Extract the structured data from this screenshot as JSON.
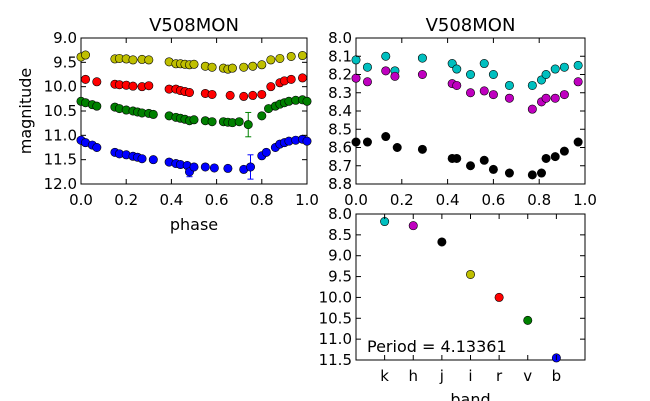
{
  "colors": {
    "k": "#00bfbf",
    "h": "#bf00bf",
    "j": "#000000",
    "i": "#bfbf00",
    "r": "#ff0000",
    "v": "#008000",
    "b": "#0000ff"
  },
  "chart_data": [
    {
      "type": "scatter",
      "title": "V508MON",
      "xlabel": "phase",
      "ylabel": "magnitude",
      "xlim": [
        0.0,
        1.0
      ],
      "ylim": [
        12.0,
        9.0
      ],
      "inverted_y": true,
      "xticks": [
        "0.0",
        "0.2",
        "0.4",
        "0.6",
        "0.8",
        "1.0"
      ],
      "yticks": [
        "9.0",
        "9.5",
        "10.0",
        "10.5",
        "11.0",
        "11.5",
        "12.0"
      ],
      "series": [
        {
          "band": "i",
          "color": "#bfbf00",
          "x": [
            0.0,
            0.02,
            0.15,
            0.17,
            0.2,
            0.23,
            0.27,
            0.3,
            0.39,
            0.42,
            0.44,
            0.46,
            0.48,
            0.5,
            0.55,
            0.58,
            0.63,
            0.65,
            0.67,
            0.72,
            0.76,
            0.8,
            0.84,
            0.88,
            0.93,
            0.98
          ],
          "y": [
            9.39,
            9.35,
            9.43,
            9.42,
            9.43,
            9.45,
            9.44,
            9.45,
            9.49,
            9.53,
            9.53,
            9.54,
            9.55,
            9.54,
            9.58,
            9.6,
            9.62,
            9.64,
            9.62,
            9.6,
            9.58,
            9.55,
            9.45,
            9.42,
            9.38,
            9.36
          ]
        },
        {
          "band": "r",
          "color": "#ff0000",
          "x": [
            0.02,
            0.07,
            0.15,
            0.17,
            0.2,
            0.23,
            0.27,
            0.3,
            0.39,
            0.42,
            0.44,
            0.46,
            0.48,
            0.55,
            0.58,
            0.66,
            0.72,
            0.76,
            0.8,
            0.84,
            0.88,
            0.9,
            0.93,
            0.98
          ],
          "y": [
            9.85,
            9.9,
            9.95,
            9.96,
            9.97,
            9.99,
            10.0,
            9.98,
            10.05,
            10.05,
            10.08,
            10.1,
            10.12,
            10.14,
            10.16,
            10.18,
            10.2,
            10.18,
            10.16,
            10.0,
            9.92,
            9.88,
            9.85,
            9.82
          ]
        },
        {
          "band": "v",
          "color": "#008000",
          "x": [
            0.0,
            0.02,
            0.05,
            0.07,
            0.15,
            0.17,
            0.2,
            0.23,
            0.25,
            0.27,
            0.3,
            0.32,
            0.39,
            0.42,
            0.44,
            0.46,
            0.48,
            0.5,
            0.55,
            0.58,
            0.63,
            0.65,
            0.67,
            0.7,
            0.74,
            0.8,
            0.83,
            0.86,
            0.88,
            0.9,
            0.92,
            0.95,
            0.98,
            1.0
          ],
          "y": [
            10.3,
            10.33,
            10.37,
            10.4,
            10.42,
            10.45,
            10.48,
            10.5,
            10.52,
            10.54,
            10.55,
            10.57,
            10.6,
            10.63,
            10.65,
            10.67,
            10.7,
            10.68,
            10.7,
            10.72,
            10.72,
            10.73,
            10.74,
            10.72,
            10.78,
            10.6,
            10.45,
            10.4,
            10.36,
            10.33,
            10.3,
            10.28,
            10.27,
            10.3
          ]
        },
        {
          "band": "b",
          "color": "#0000ff",
          "x": [
            0.0,
            0.02,
            0.05,
            0.07,
            0.15,
            0.17,
            0.2,
            0.23,
            0.25,
            0.27,
            0.32,
            0.39,
            0.42,
            0.44,
            0.47,
            0.48,
            0.5,
            0.55,
            0.59,
            0.65,
            0.72,
            0.75,
            0.8,
            0.82,
            0.86,
            0.88,
            0.9,
            0.92,
            0.95,
            0.98,
            1.0
          ],
          "y": [
            11.1,
            11.15,
            11.2,
            11.25,
            11.35,
            11.38,
            11.4,
            11.43,
            11.45,
            11.48,
            11.5,
            11.55,
            11.58,
            11.6,
            11.62,
            11.75,
            11.65,
            11.65,
            11.67,
            11.68,
            11.7,
            11.65,
            11.42,
            11.35,
            11.25,
            11.18,
            11.15,
            11.12,
            11.1,
            11.08,
            11.12
          ]
        }
      ],
      "errorbars": [
        {
          "band": "v",
          "x": 0.74,
          "y": 10.78,
          "err": 0.25
        },
        {
          "band": "b",
          "x": 0.75,
          "y": 11.65,
          "err": 0.25
        },
        {
          "band": "b",
          "x": 0.48,
          "y": 11.75,
          "err": 0.1
        }
      ]
    },
    {
      "type": "scatter",
      "title": "V508MON",
      "xlim": [
        0.0,
        1.0
      ],
      "ylim": [
        8.8,
        8.0
      ],
      "inverted_y": true,
      "xticks": [
        "0.0",
        "0.2",
        "0.4",
        "0.6",
        "0.8",
        "1.0"
      ],
      "yticks": [
        "8.0",
        "8.1",
        "8.2",
        "8.3",
        "8.4",
        "8.5",
        "8.6",
        "8.7",
        "8.8"
      ],
      "series": [
        {
          "band": "k",
          "color": "#00bfbf",
          "x": [
            0.0,
            0.05,
            0.13,
            0.17,
            0.29,
            0.42,
            0.44,
            0.5,
            0.56,
            0.6,
            0.67,
            0.77,
            0.81,
            0.83,
            0.87,
            0.91,
            0.97
          ],
          "y": [
            8.12,
            8.16,
            8.1,
            8.18,
            8.11,
            8.14,
            8.17,
            8.2,
            8.14,
            8.2,
            8.26,
            8.26,
            8.23,
            8.2,
            8.17,
            8.16,
            8.15
          ]
        },
        {
          "band": "h",
          "color": "#bf00bf",
          "x": [
            0.0,
            0.05,
            0.13,
            0.17,
            0.29,
            0.42,
            0.44,
            0.5,
            0.56,
            0.6,
            0.67,
            0.77,
            0.81,
            0.83,
            0.87,
            0.91,
            0.97
          ],
          "y": [
            8.22,
            8.24,
            8.18,
            8.21,
            8.2,
            8.25,
            8.26,
            8.3,
            8.29,
            8.31,
            8.33,
            8.39,
            8.35,
            8.33,
            8.33,
            8.31,
            8.24
          ]
        },
        {
          "band": "j",
          "color": "#000000",
          "x": [
            0.0,
            0.05,
            0.13,
            0.18,
            0.29,
            0.42,
            0.44,
            0.5,
            0.56,
            0.6,
            0.67,
            0.77,
            0.81,
            0.83,
            0.87,
            0.91,
            0.97
          ],
          "y": [
            8.57,
            8.57,
            8.54,
            8.6,
            8.61,
            8.66,
            8.66,
            8.7,
            8.67,
            8.72,
            8.74,
            8.75,
            8.74,
            8.66,
            8.65,
            8.62,
            8.57
          ]
        }
      ]
    },
    {
      "type": "scatter",
      "xlabel": "band",
      "categories": [
        "k",
        "h",
        "j",
        "i",
        "r",
        "v",
        "b"
      ],
      "values": [
        8.18,
        8.28,
        8.67,
        9.45,
        10.0,
        10.55,
        11.45
      ],
      "ylim": [
        11.5,
        8.0
      ],
      "inverted_y": true,
      "yticks": [
        "8.0",
        "8.5",
        "9.0",
        "9.5",
        "10.0",
        "10.5",
        "11.0",
        "11.5"
      ],
      "annotation": "Period = 4.13361"
    }
  ]
}
